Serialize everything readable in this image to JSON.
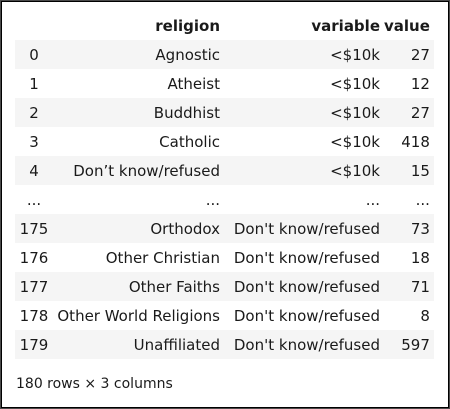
{
  "table": {
    "columns": [
      "",
      "religion",
      "variable",
      "value"
    ],
    "rows": [
      {
        "index": "0",
        "religion": "Agnostic",
        "variable": "<$10k",
        "value": "27"
      },
      {
        "index": "1",
        "religion": "Atheist",
        "variable": "<$10k",
        "value": "12"
      },
      {
        "index": "2",
        "religion": "Buddhist",
        "variable": "<$10k",
        "value": "27"
      },
      {
        "index": "3",
        "religion": "Catholic",
        "variable": "<$10k",
        "value": "418"
      },
      {
        "index": "4",
        "religion": "Don’t know/refused",
        "variable": "<$10k",
        "value": "15"
      },
      {
        "index": "...",
        "religion": "...",
        "variable": "...",
        "value": "..."
      },
      {
        "index": "175",
        "religion": "Orthodox",
        "variable": "Don't know/refused",
        "value": "73"
      },
      {
        "index": "176",
        "religion": "Other Christian",
        "variable": "Don't know/refused",
        "value": "18"
      },
      {
        "index": "177",
        "religion": "Other Faiths",
        "variable": "Don't know/refused",
        "value": "71"
      },
      {
        "index": "178",
        "religion": "Other World Religions",
        "variable": "Don't know/refused",
        "value": "8"
      },
      {
        "index": "179",
        "religion": "Unaffiliated",
        "variable": "Don't know/refused",
        "value": "597"
      }
    ]
  },
  "footer": {
    "shape_text": "180 rows × 3 columns"
  },
  "colors": {
    "stripe": "#f5f5f5",
    "background": "#ffffff",
    "border": "#000000"
  }
}
